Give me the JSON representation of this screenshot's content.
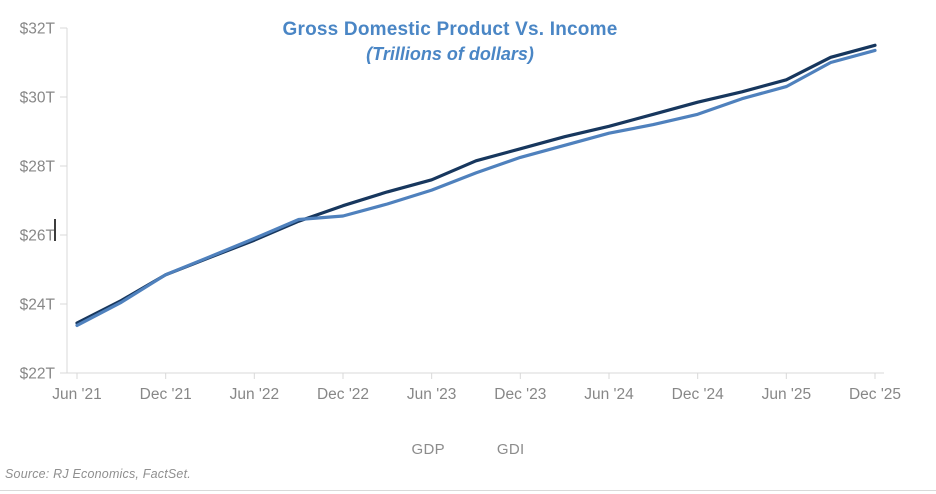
{
  "title": "Gross Domestic Product Vs. Income",
  "subtitle": "(Trillions of dollars)",
  "source": "Source: RJ Economics, FactSet.",
  "colors": {
    "title_blue": "#4a86c5",
    "gdp_line": "#17375e",
    "gdi_line": "#4f81bd",
    "axis_line": "#d9d9d9",
    "axis_text": "#878787",
    "legend_text": "#8c8c8c"
  },
  "legend": [
    {
      "label": "GDP",
      "color": "#17375e"
    },
    {
      "label": "GDI",
      "color": "#4f81bd"
    }
  ],
  "chart_data": {
    "type": "line",
    "title": "Gross Domestic Product Vs. Income",
    "subtitle": "(Trillions of dollars)",
    "x": [
      "Jun '21",
      "Sep '21",
      "Dec '21",
      "Mar '22",
      "Jun '22",
      "Sep '22",
      "Dec '22",
      "Mar '23",
      "Jun '23",
      "Sep '23",
      "Dec '23",
      "Mar '24",
      "Jun '24",
      "Sep '24",
      "Dec '24",
      "Mar '25",
      "Jun '25",
      "Sep '25",
      "Dec '25"
    ],
    "x_tick_labels": [
      "Jun '21",
      "Dec '21",
      "Jun '22",
      "Dec '22",
      "Jun '23",
      "Dec '23",
      "Jun '24",
      "Dec '24",
      "Jun '25",
      "Dec '25"
    ],
    "y_tick_labels": [
      "$22T",
      "$24T",
      "$26T",
      "$28T",
      "$30T",
      "$32T"
    ],
    "y_tick_values": [
      22,
      24,
      26,
      28,
      30,
      32
    ],
    "ylim": [
      22,
      32
    ],
    "grid": false,
    "legend_position": "bottom-center",
    "series": [
      {
        "name": "GDP",
        "color": "#17375e",
        "values": [
          23.45,
          24.1,
          24.85,
          25.35,
          25.85,
          26.4,
          26.85,
          27.25,
          27.6,
          28.15,
          28.5,
          28.85,
          29.15,
          29.5,
          29.85,
          30.15,
          30.5,
          31.15,
          31.5
        ]
      },
      {
        "name": "GDI",
        "color": "#4f81bd",
        "values": [
          23.38,
          24.05,
          24.85,
          25.37,
          25.9,
          26.45,
          26.55,
          26.9,
          27.3,
          27.8,
          28.25,
          28.6,
          28.95,
          29.2,
          29.5,
          29.95,
          30.3,
          31.0,
          31.35
        ]
      }
    ]
  }
}
